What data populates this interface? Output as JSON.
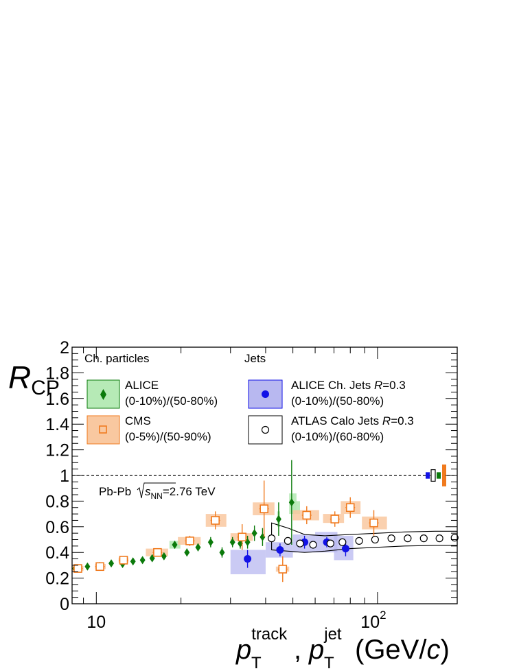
{
  "chart_data": {
    "type": "scatter",
    "xscale": "log",
    "xlim": [
      8.2,
      192
    ],
    "ylim": [
      0,
      2
    ],
    "ytick_labels": [
      "0",
      "0.2",
      "0.4",
      "0.6",
      "0.8",
      "1",
      "1.2",
      "1.4",
      "1.6",
      "1.8",
      "2"
    ],
    "xtick_labels": [
      {
        "base": "10",
        "exp": ""
      },
      {
        "base": "10",
        "exp": "2"
      }
    ],
    "ylabel": {
      "main": "R",
      "sub": "CP"
    },
    "xlabel": {
      "p1": "p",
      "sub1": "T",
      "sup1": "track",
      "p2": "p",
      "sub2": "T",
      "sup2": "jet",
      "unit_open": "(GeV/",
      "unit_c": "c",
      "unit_close": ")",
      "sep": ","
    },
    "annotation": {
      "system": "Pb-Pb",
      "sqrt": "s",
      "sub": "NN",
      "energy": "=2.76 TeV"
    },
    "legend_headers": {
      "particles": "Ch. particles",
      "jets": "Jets"
    },
    "legend": [
      {
        "key": "alice",
        "line1": "ALICE",
        "line2": "(0-10%)/(50-80%)"
      },
      {
        "key": "cms",
        "line1": "CMS",
        "line2": "(0-5%)/(50-90%)"
      },
      {
        "key": "alice_jets",
        "line1": "ALICE Ch. Jets",
        "r_label": "R",
        "r_value": "=0.3",
        "line2": "(0-10%)/(50-80%)"
      },
      {
        "key": "atlas",
        "line1": "ATLAS Calo Jets",
        "r_label": "R",
        "r_value": "=0.3",
        "line2": "(0-10%)/(60-80%)"
      }
    ],
    "colors": {
      "alice": "#0b7a0b",
      "alice_box": "#b6eab6",
      "cms": "#f07a1e",
      "cms_box": "#f9c8a0",
      "alice_jets": "#1212e6",
      "alice_jets_box": "#b8b8f0",
      "atlas": "#000000"
    },
    "series": [
      {
        "name": "ALICE Ch. particles",
        "key": "alice",
        "points": [
          [
            8.4,
            0.275,
            0.025
          ],
          [
            9.3,
            0.29,
            0.02
          ],
          [
            10.3,
            0.295,
            0.02
          ],
          [
            11.3,
            0.315,
            0.02
          ],
          [
            12.4,
            0.31,
            0.02
          ],
          [
            13.5,
            0.33,
            0.02
          ],
          [
            14.6,
            0.34,
            0.02
          ],
          [
            15.8,
            0.355,
            0.02
          ],
          [
            17.4,
            0.37,
            0.025
          ],
          [
            19,
            0.46,
            0.03
          ],
          [
            21,
            0.4,
            0.03
          ],
          [
            23,
            0.44,
            0.03
          ],
          [
            25.5,
            0.48,
            0.04
          ],
          [
            28,
            0.4,
            0.04
          ],
          [
            30.5,
            0.48,
            0.04
          ],
          [
            32.5,
            0.47,
            0.04
          ],
          [
            34.5,
            0.48,
            0.05
          ],
          [
            36.5,
            0.55,
            0.06
          ],
          [
            39,
            0.52,
            0.07
          ],
          [
            44.5,
            0.66,
            0.13
          ],
          [
            49.5,
            0.79,
            0.33
          ]
        ]
      },
      {
        "name": "CMS",
        "key": "cms",
        "points": [
          [
            8.6,
            0.275,
            0.02
          ],
          [
            10.3,
            0.29,
            0.02
          ],
          [
            12.5,
            0.34,
            0.02
          ],
          [
            16.5,
            0.4,
            0.03
          ],
          [
            21.5,
            0.49,
            0.04
          ],
          [
            26.5,
            0.65,
            0.07
          ],
          [
            33,
            0.52,
            0.1
          ],
          [
            39.5,
            0.74,
            0.22
          ],
          [
            46,
            0.27,
            0.1
          ],
          [
            56,
            0.69,
            0.07
          ],
          [
            70.5,
            0.66,
            0.06
          ],
          [
            80,
            0.75,
            0.08
          ],
          [
            97,
            0.63,
            0.1
          ]
        ]
      },
      {
        "name": "ALICE Ch. Jets",
        "key": "alice_jets",
        "points": [
          [
            34.5,
            0.35,
            0.07
          ],
          [
            45,
            0.42,
            0.05
          ],
          [
            55,
            0.48,
            0.05
          ],
          [
            66,
            0.48,
            0.04
          ],
          [
            77,
            0.43,
            0.06
          ]
        ]
      },
      {
        "name": "ATLAS Calo Jets",
        "key": "atlas",
        "points": [
          [
            42,
            0.51,
            0.02
          ],
          [
            48,
            0.49,
            0.02
          ],
          [
            53,
            0.47,
            0.02
          ],
          [
            59,
            0.46,
            0.02
          ],
          [
            68,
            0.47,
            0.02
          ],
          [
            75,
            0.48,
            0.02
          ],
          [
            86,
            0.49,
            0.02
          ],
          [
            98,
            0.5,
            0.02
          ],
          [
            112,
            0.51,
            0.02
          ],
          [
            128,
            0.51,
            0.02
          ],
          [
            146,
            0.51,
            0.02
          ],
          [
            166,
            0.51,
            0.02
          ],
          [
            188,
            0.515,
            0.02
          ]
        ]
      }
    ],
    "sys_boxes": {
      "alice": [
        [
          18.2,
          19.9,
          0.43,
          0.49
        ],
        [
          44,
          45,
          0.6,
          0.72
        ],
        [
          48.5,
          51.5,
          0.7,
          0.86
        ],
        [
          50,
          53,
          0.7,
          0.8
        ]
      ],
      "cms": [
        [
          8.2,
          9.0,
          0.255,
          0.295
        ],
        [
          9.9,
          10.8,
          0.27,
          0.31
        ],
        [
          12,
          13,
          0.32,
          0.36
        ],
        [
          15,
          18,
          0.37,
          0.43
        ],
        [
          19.5,
          23.5,
          0.46,
          0.52
        ],
        [
          24.5,
          29,
          0.6,
          0.7
        ],
        [
          30,
          36,
          0.49,
          0.55
        ],
        [
          36,
          43,
          0.69,
          0.79
        ],
        [
          43.5,
          48.5,
          0.25,
          0.29
        ],
        [
          50,
          62,
          0.65,
          0.73
        ],
        [
          64,
          76,
          0.63,
          0.7
        ],
        [
          74,
          87,
          0.7,
          0.8
        ],
        [
          88,
          108,
          0.58,
          0.68
        ]
      ],
      "alice_jets": [
        [
          30,
          40,
          0.23,
          0.42
        ],
        [
          40,
          50,
          0.36,
          0.48
        ],
        [
          50,
          60,
          0.4,
          0.54
        ],
        [
          60,
          72,
          0.4,
          0.56
        ],
        [
          70,
          82,
          0.34,
          0.53
        ]
      ]
    },
    "atlas_band_upper": [
      [
        42,
        0.63
      ],
      [
        48,
        0.59
      ],
      [
        55,
        0.54
      ],
      [
        65,
        0.53
      ],
      [
        80,
        0.54
      ],
      [
        100,
        0.55
      ],
      [
        125,
        0.56
      ],
      [
        160,
        0.565
      ],
      [
        192,
        0.565
      ]
    ],
    "atlas_band_lower": [
      [
        42,
        0.42
      ],
      [
        48,
        0.41
      ],
      [
        55,
        0.4
      ],
      [
        65,
        0.41
      ],
      [
        80,
        0.43
      ],
      [
        100,
        0.44
      ],
      [
        125,
        0.45
      ],
      [
        160,
        0.455
      ],
      [
        192,
        0.455
      ]
    ],
    "norm_uncertainties": [
      {
        "key": "alice_jets",
        "color": "#1212e6",
        "style": "fill",
        "y_half": 0.025
      },
      {
        "key": "atlas",
        "color": "#000000",
        "style": "open",
        "y_half": 0.045
      },
      {
        "key": "alice",
        "color": "#0b7a0b",
        "style": "fill",
        "y_half": 0.025
      },
      {
        "key": "cms",
        "color": "#f07a1e",
        "style": "fill",
        "y_half": 0.085
      }
    ],
    "reference_line": 1
  }
}
